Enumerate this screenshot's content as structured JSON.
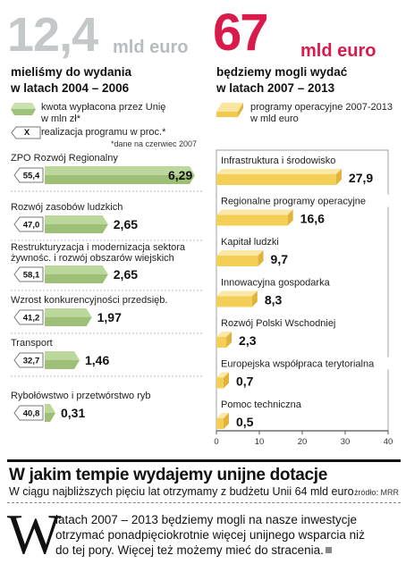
{
  "left_header": {
    "amount": "12,4",
    "unit": "mld euro",
    "subtitle_line1": "mieliśmy do wydania",
    "subtitle_line2": "w latach 2004 – 2006"
  },
  "right_header": {
    "amount": "67",
    "unit": "mld euro",
    "subtitle_line1": "będziemy mogli wydać",
    "subtitle_line2": "w latach 2007 – 2013"
  },
  "legend": {
    "green_line1": "kwota wypłacona przez Unię",
    "green_line2": "w mln zł*",
    "x_symbol": "X",
    "x_label": "realizacja programu w proc.*",
    "note": "*dane na czerwiec 2007",
    "yellow_line1": "programy operacyjne 2007-2013",
    "yellow_line2": "w mld euro"
  },
  "colors": {
    "gray_big": "#c5c8ca",
    "red_accent": "#d81b4a",
    "green_bar": "#b9d49a",
    "yellow_bar": "#f7d774"
  },
  "chart_data": [
    {
      "type": "bar",
      "orientation": "horizontal",
      "categories": [
        "ZPO Rozwój Regionalny",
        "Rozwój zasobów ludzkich",
        "Restrukturyzacja i modernizacja sektora żywnośc. i rozwój obszarów wiejskich",
        "Wzrost konkurencyjności przedsięb.",
        "Transport",
        "Rybołówstwo i przetwórstwo ryb"
      ],
      "series": [
        {
          "name": "kwota wypłacona przez Unię w mln zł*",
          "values": [
            6.29,
            2.65,
            2.65,
            1.97,
            1.46,
            0.31
          ]
        },
        {
          "name": "realizacja programu w proc.*",
          "values": [
            55.4,
            47.0,
            58.1,
            41.2,
            32.7,
            40.8
          ]
        }
      ]
    },
    {
      "type": "bar",
      "orientation": "horizontal",
      "categories": [
        "Infrastruktura i środowisko",
        "Regionalne programy operacyjne",
        "Kapitał ludzki",
        "Innowacyjna gospodarka",
        "Rozwój Polski Wschodniej",
        "Europejska współpraca terytorialna",
        "Pomoc techniczna"
      ],
      "values": [
        27.9,
        16.6,
        9.7,
        8.3,
        2.3,
        0.7,
        0.5
      ],
      "x_ticks": [
        "0",
        "10",
        "20",
        "30",
        "40"
      ],
      "xlim": [
        0,
        40
      ]
    }
  ],
  "footer": {
    "title": "W jakim tempie wydajemy unijne dotacje",
    "subtitle": "W ciągu najbliższych pięciu lat otrzymamy z budżetu Unii 64 mld euro",
    "source": "źródło: MRR",
    "dropcap": "W",
    "lead_line1": "latach 2007 – 2013 będziemy mogli na nasze inwestycje",
    "lead_line2": "otrzymać ponadpięciokrotnie więcej unijnego wsparcia niż",
    "lead_line3": "do tej pory. Więcej też możemy mieć do stracenia."
  }
}
